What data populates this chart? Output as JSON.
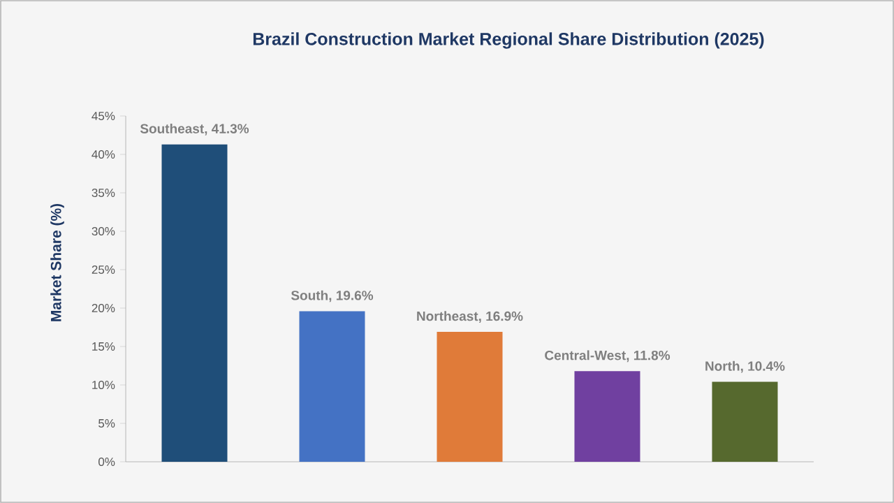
{
  "chart_data": {
    "type": "bar",
    "title": "Brazil Construction Market Regional Share Distribution (2025)",
    "ylabel": "Market Share (%)",
    "categories": [
      null,
      null,
      null,
      null,
      null
    ],
    "values": [
      41.3,
      19.6,
      16.9,
      11.8,
      10.4
    ],
    "colors": [
      "#1f4e79",
      "#4472c4",
      "#e07b39",
      "#7040a0",
      "#56692e"
    ],
    "value_labels": [
      "Southeast, 41.3%",
      "South, 19.6%",
      "Northeast, 16.9%",
      "Central-West, 11.8%",
      "North, 10.4%"
    ],
    "ylim": [
      0,
      45
    ],
    "yticks": [
      {
        "value": 0,
        "label": "0%"
      },
      {
        "value": 5,
        "label": "5%"
      },
      {
        "value": 10,
        "label": "10%"
      },
      {
        "value": 15,
        "label": "15%"
      },
      {
        "value": 20,
        "label": "20%"
      },
      {
        "value": 25,
        "label": "25%"
      },
      {
        "value": 30,
        "label": "30%"
      },
      {
        "value": 35,
        "label": "35%"
      },
      {
        "value": 40,
        "label": "40%"
      },
      {
        "value": 45,
        "label": "45%"
      }
    ],
    "grid": false
  }
}
